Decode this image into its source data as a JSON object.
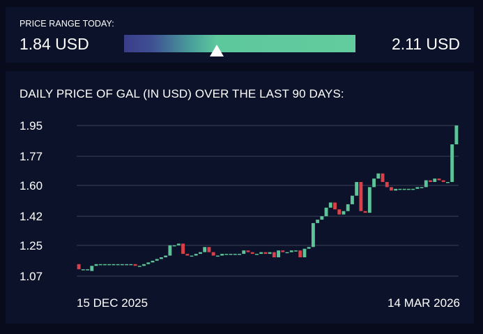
{
  "range": {
    "label": "PRICE RANGE TODAY:",
    "low_label": "1.84 USD",
    "high_label": "2.11 USD",
    "low": 1.84,
    "high": 2.11,
    "current_fraction": 0.4
  },
  "chart_data": {
    "type": "candlestick",
    "title": "DAILY PRICE OF GAL (IN USD) OVER THE LAST 90 DAYS:",
    "y_ticks": [
      1.95,
      1.77,
      1.6,
      1.42,
      1.25,
      1.07
    ],
    "y_tick_labels": [
      "1.95",
      "1.77",
      "1.60",
      "1.42",
      "1.25",
      "1.07"
    ],
    "ylim": [
      1.07,
      1.95
    ],
    "grid": true,
    "x_start_label": "15 DEC 2025",
    "x_end_label": "14 MAR 2026",
    "colors": {
      "up": "#5cc497",
      "down": "#d8404a",
      "grid": "#3a4258"
    },
    "candles": [
      [
        1.14,
        1.11
      ],
      [
        1.11,
        1.11
      ],
      [
        1.11,
        1.11
      ],
      [
        1.1,
        1.13
      ],
      [
        1.13,
        1.14
      ],
      [
        1.14,
        1.14
      ],
      [
        1.14,
        1.14
      ],
      [
        1.14,
        1.14
      ],
      [
        1.14,
        1.14
      ],
      [
        1.14,
        1.14
      ],
      [
        1.14,
        1.14
      ],
      [
        1.14,
        1.14
      ],
      [
        1.14,
        1.14
      ],
      [
        1.14,
        1.13
      ],
      [
        1.13,
        1.13
      ],
      [
        1.13,
        1.14
      ],
      [
        1.14,
        1.15
      ],
      [
        1.15,
        1.16
      ],
      [
        1.16,
        1.17
      ],
      [
        1.17,
        1.18
      ],
      [
        1.18,
        1.19
      ],
      [
        1.19,
        1.25
      ],
      [
        1.25,
        1.25
      ],
      [
        1.25,
        1.26
      ],
      [
        1.26,
        1.2
      ],
      [
        1.2,
        1.19
      ],
      [
        1.19,
        1.19
      ],
      [
        1.19,
        1.2
      ],
      [
        1.2,
        1.21
      ],
      [
        1.21,
        1.24
      ],
      [
        1.24,
        1.21
      ],
      [
        1.21,
        1.19
      ],
      [
        1.19,
        1.19
      ],
      [
        1.19,
        1.2
      ],
      [
        1.2,
        1.2
      ],
      [
        1.2,
        1.2
      ],
      [
        1.2,
        1.2
      ],
      [
        1.2,
        1.2
      ],
      [
        1.2,
        1.22
      ],
      [
        1.22,
        1.21
      ],
      [
        1.21,
        1.2
      ],
      [
        1.2,
        1.2
      ],
      [
        1.2,
        1.21
      ],
      [
        1.21,
        1.2
      ],
      [
        1.2,
        1.21
      ],
      [
        1.21,
        1.18
      ],
      [
        1.18,
        1.22
      ],
      [
        1.22,
        1.21
      ],
      [
        1.21,
        1.21
      ],
      [
        1.21,
        1.22
      ],
      [
        1.22,
        1.22
      ],
      [
        1.22,
        1.18
      ],
      [
        1.18,
        1.23
      ],
      [
        1.23,
        1.24
      ],
      [
        1.24,
        1.38
      ],
      [
        1.38,
        1.4
      ],
      [
        1.4,
        1.42
      ],
      [
        1.42,
        1.47
      ],
      [
        1.47,
        1.5
      ],
      [
        1.5,
        1.46
      ],
      [
        1.46,
        1.43
      ],
      [
        1.43,
        1.45
      ],
      [
        1.45,
        1.49
      ],
      [
        1.49,
        1.54
      ],
      [
        1.54,
        1.62
      ],
      [
        1.62,
        1.45
      ],
      [
        1.45,
        1.44
      ],
      [
        1.44,
        1.59
      ],
      [
        1.59,
        1.64
      ],
      [
        1.64,
        1.67
      ],
      [
        1.67,
        1.62
      ],
      [
        1.62,
        1.59
      ],
      [
        1.59,
        1.57
      ],
      [
        1.57,
        1.58
      ],
      [
        1.58,
        1.58
      ],
      [
        1.58,
        1.58
      ],
      [
        1.58,
        1.58
      ],
      [
        1.58,
        1.58
      ],
      [
        1.58,
        1.59
      ],
      [
        1.59,
        1.59
      ],
      [
        1.59,
        1.63
      ],
      [
        1.63,
        1.62
      ],
      [
        1.62,
        1.64
      ],
      [
        1.64,
        1.63
      ],
      [
        1.63,
        1.62
      ],
      [
        1.62,
        1.62
      ],
      [
        1.62,
        1.84
      ],
      [
        1.84,
        1.95
      ]
    ]
  }
}
